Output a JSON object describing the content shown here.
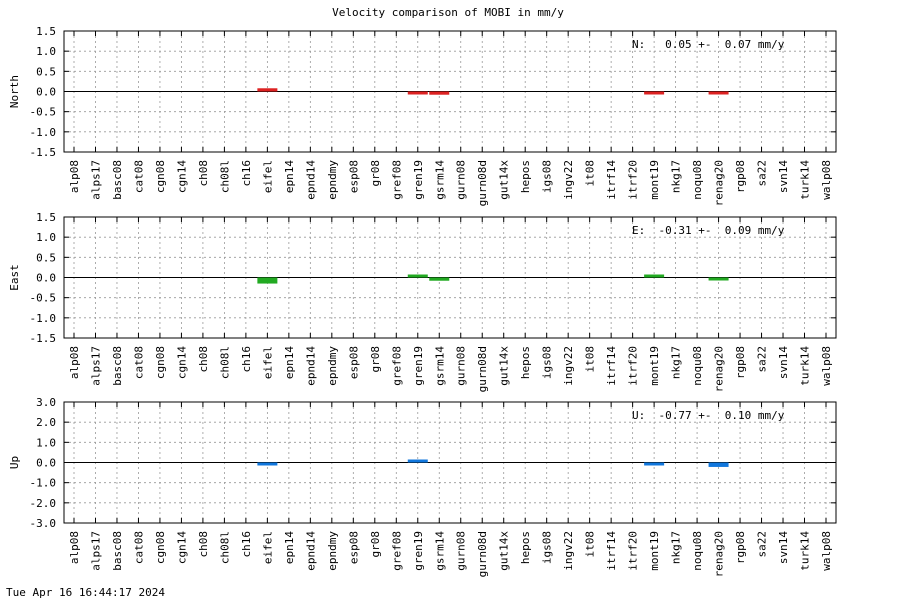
{
  "title": "Velocity comparison of MOBI in mm/y",
  "footer_timestamp": "Tue Apr 16 16:44:17 2024",
  "chart_data": [
    {
      "type": "bar",
      "ylabel": "North",
      "summary": "N:   0.05 +-  0.07 mm/y",
      "color": "#dd2222",
      "grid": true,
      "ylim": [
        -1.5,
        1.5
      ],
      "yticks": [
        1.5,
        1.0,
        0.5,
        0.0,
        -0.5,
        -1.0,
        -1.5
      ],
      "ytick_labels": [
        "1.5",
        "1.0",
        "0.5",
        "0.0",
        "-0.5",
        "-1.0",
        "-1.5"
      ],
      "categories": [
        "alp08",
        "alps17",
        "basc08",
        "cat08",
        "cgn08",
        "cgn14",
        "ch08",
        "ch08l",
        "ch16",
        "eifel",
        "epn14",
        "epnd14",
        "epndmy",
        "esp08",
        "gr08",
        "gref08",
        "gren19",
        "gsrm14",
        "gurn08",
        "gurn08d",
        "gut14x",
        "hepos",
        "igs08",
        "ingv22",
        "it08",
        "itrf14",
        "itrf20",
        "mont19",
        "nkg17",
        "noqu08",
        "renag20",
        "rgp08",
        "sa22",
        "svn14",
        "turk14",
        "walp08"
      ],
      "values": [
        0,
        0,
        0,
        0,
        0,
        0,
        0,
        0,
        0,
        0.08,
        0,
        0,
        0,
        0,
        0,
        0,
        -0.03,
        -0.08,
        0,
        0,
        0,
        0,
        0,
        0,
        0,
        0,
        0,
        -0.06,
        0,
        0,
        -0.04,
        0,
        0,
        0,
        0,
        0
      ]
    },
    {
      "type": "bar",
      "ylabel": "East",
      "summary": "E:  -0.31 +-  0.09 mm/y",
      "color": "#22aa22",
      "grid": true,
      "ylim": [
        -1.5,
        1.5
      ],
      "yticks": [
        1.5,
        1.0,
        0.5,
        0.0,
        -0.5,
        -1.0,
        -1.5
      ],
      "ytick_labels": [
        "1.5",
        "1.0",
        "0.5",
        "0.0",
        "-0.5",
        "-1.0",
        "-1.5"
      ],
      "categories": [
        "alp08",
        "alps17",
        "basc08",
        "cat08",
        "cgn08",
        "cgn14",
        "ch08",
        "ch08l",
        "ch16",
        "eifel",
        "epn14",
        "epnd14",
        "epndmy",
        "esp08",
        "gr08",
        "gref08",
        "gren19",
        "gsrm14",
        "gurn08",
        "gurn08d",
        "gut14x",
        "hepos",
        "igs08",
        "ingv22",
        "it08",
        "itrf14",
        "itrf20",
        "mont19",
        "nkg17",
        "noqu08",
        "renag20",
        "rgp08",
        "sa22",
        "svn14",
        "turk14",
        "walp08"
      ],
      "values": [
        0,
        0,
        0,
        0,
        0,
        0,
        0,
        0,
        0,
        -0.15,
        0,
        0,
        0,
        0,
        0,
        0,
        0.03,
        -0.08,
        0,
        0,
        0,
        0,
        0,
        0,
        0,
        0,
        0,
        0.03,
        0,
        0,
        -0.07,
        0,
        0,
        0,
        0,
        0
      ]
    },
    {
      "type": "bar",
      "ylabel": "Up",
      "summary": "U:  -0.77 +-  0.10 mm/y",
      "color": "#1177dd",
      "grid": true,
      "ylim": [
        -3.0,
        3.0
      ],
      "yticks": [
        3.0,
        2.0,
        1.0,
        0.0,
        -1.0,
        -2.0,
        -3.0
      ],
      "ytick_labels": [
        "3.0",
        "2.0",
        "1.0",
        "0.0",
        "-1.0",
        "-2.0",
        "-3.0"
      ],
      "categories": [
        "alp08",
        "alps17",
        "basc08",
        "cat08",
        "cgn08",
        "cgn14",
        "ch08",
        "ch08l",
        "ch16",
        "eifel",
        "epn14",
        "epnd14",
        "epndmy",
        "esp08",
        "gr08",
        "gref08",
        "gren19",
        "gsrm14",
        "gurn08",
        "gurn08d",
        "gut14x",
        "hepos",
        "igs08",
        "ingv22",
        "it08",
        "itrf14",
        "itrf20",
        "mont19",
        "nkg17",
        "noqu08",
        "renag20",
        "rgp08",
        "sa22",
        "svn14",
        "turk14",
        "walp08"
      ],
      "values": [
        0,
        0,
        0,
        0,
        0,
        0,
        0,
        0,
        0,
        -0.05,
        0,
        0,
        0,
        0,
        0,
        0,
        0.07,
        0,
        0,
        0,
        0,
        0,
        0,
        0,
        0,
        0,
        0,
        -0.12,
        0,
        0,
        -0.22,
        0,
        0,
        0,
        0,
        0
      ]
    }
  ]
}
